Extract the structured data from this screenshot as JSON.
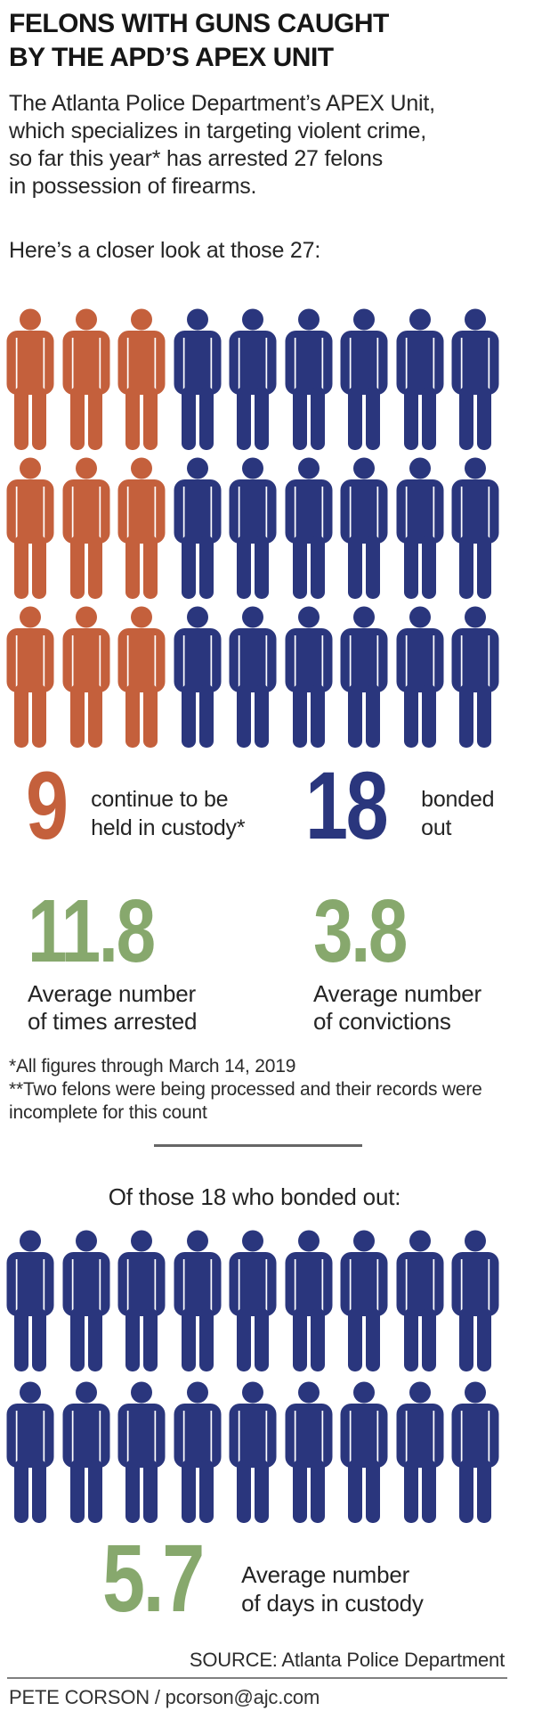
{
  "colors": {
    "orange": "#c4603c",
    "blue": "#2a367d",
    "green": "#87a86d",
    "text": "#242424",
    "divider_gray": "#666666",
    "rule_gray": "#808080"
  },
  "header": {
    "title": "FELONS WITH GUNS CAUGHT\nBY THE APD’S APEX UNIT",
    "intro": "The Atlanta Police Department’s APEX Unit,\nwhich specializes in targeting violent crime,\nso far this year* has arrested 27 felons\nin possession of firearms.",
    "closer_look": "Here’s a closer look at those 27:"
  },
  "stats": {
    "custody": {
      "value": "9",
      "label": "continue to be\nheld in custody*"
    },
    "bonded": {
      "value": "18",
      "label": "bonded\nout"
    },
    "arrests": {
      "value": "11.8",
      "label": "Average number\nof times arrested"
    },
    "convictions": {
      "value": "3.8",
      "label": "Average number\nof convictions"
    },
    "days": {
      "value": "5.7",
      "label": "Average number\nof days in custody"
    }
  },
  "footnotes": "*All figures through March 14, 2019\n**Two felons were being processed and their records were\nincomplete for this count",
  "bonded_heading": "Of those 18 who bonded out:",
  "source": "SOURCE: Atlanta Police Department",
  "credit": "PETE CORSON / pcorson@ajc.com",
  "pictograms": {
    "all_felons": {
      "rows": [
        {
          "orange": 3,
          "blue": 6
        },
        {
          "orange": 3,
          "blue": 6
        },
        {
          "orange": 3,
          "blue": 6
        }
      ]
    },
    "bonded_out": {
      "rows": [
        {
          "orange": 0,
          "blue": 9
        },
        {
          "orange": 0,
          "blue": 9
        }
      ]
    }
  },
  "chart_data": {
    "type": "pictograph",
    "title": "FELONS WITH GUNS CAUGHT BY THE APD'S APEX UNIT",
    "total_felons": 27,
    "unit": "1 icon = 1 felon",
    "groups": [
      {
        "name": "continue to be held in custody*",
        "value": 9,
        "color": "#c4603c"
      },
      {
        "name": "bonded out",
        "value": 18,
        "color": "#2a367d"
      }
    ],
    "averages": [
      {
        "name": "Average number of times arrested",
        "value": 11.8
      },
      {
        "name": "Average number of convictions",
        "value": 3.8
      },
      {
        "name": "Average number of days in custody (of the 18 who bonded out)",
        "value": 5.7
      }
    ],
    "layout": {
      "icons_per_row": 9,
      "top_grid_rows": 3,
      "bottom_grid_rows": 2,
      "legend_position": "below-grid"
    },
    "footnotes": [
      "*All figures through March 14, 2019",
      "**Two felons were being processed and their records were incomplete for this count"
    ],
    "source": "Atlanta Police Department"
  }
}
